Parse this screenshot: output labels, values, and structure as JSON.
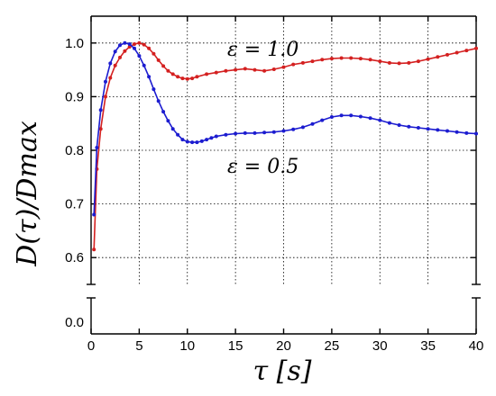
{
  "chart_data": {
    "type": "line",
    "xlabel": "τ [s]",
    "ylabel": "D(τ)/Dmax",
    "xlim": [
      0,
      40
    ],
    "ylim_upper": [
      0.55,
      1.05
    ],
    "ylim_lower": [
      0,
      0.05
    ],
    "broken_y_axis": true,
    "grid": true,
    "x_ticks": [
      "0",
      "5",
      "10",
      "15",
      "20",
      "25",
      "30",
      "35",
      "40"
    ],
    "y_ticks_upper": [
      "0.6",
      "0.7",
      "0.8",
      "0.9",
      "1.0"
    ],
    "y_ticks_lower": [
      "0.0"
    ],
    "series": [
      {
        "name": "ε = 1.0",
        "color": "#d42020",
        "x": [
          0.3,
          0.6,
          1.0,
          1.5,
          2.0,
          2.5,
          3.0,
          3.5,
          4.0,
          4.5,
          5.0,
          5.5,
          6.0,
          6.5,
          7.0,
          7.5,
          8.0,
          8.5,
          9.0,
          9.5,
          10.0,
          10.5,
          11.0,
          12.0,
          13.0,
          14.0,
          15.0,
          16.0,
          17.0,
          18.0,
          19.0,
          20.0,
          21.0,
          22.0,
          23.0,
          24.0,
          25.0,
          26.0,
          27.0,
          28.0,
          29.0,
          30.0,
          31.0,
          32.0,
          33.0,
          34.0,
          35.0,
          36.0,
          37.0,
          38.0,
          39.0,
          40.0
        ],
        "y": [
          0.615,
          0.765,
          0.84,
          0.9,
          0.935,
          0.958,
          0.973,
          0.985,
          0.993,
          0.998,
          1.0,
          0.997,
          0.99,
          0.98,
          0.968,
          0.957,
          0.948,
          0.942,
          0.937,
          0.934,
          0.933,
          0.934,
          0.937,
          0.942,
          0.945,
          0.948,
          0.95,
          0.952,
          0.95,
          0.948,
          0.951,
          0.955,
          0.96,
          0.963,
          0.966,
          0.969,
          0.971,
          0.972,
          0.972,
          0.971,
          0.969,
          0.966,
          0.963,
          0.962,
          0.963,
          0.966,
          0.97,
          0.974,
          0.978,
          0.982,
          0.986,
          0.99
        ]
      },
      {
        "name": "ε = 0.5",
        "color": "#1c1cd0",
        "x": [
          0.3,
          0.6,
          1.0,
          1.5,
          2.0,
          2.5,
          3.0,
          3.5,
          4.0,
          4.5,
          5.0,
          5.5,
          6.0,
          6.5,
          7.0,
          7.5,
          8.0,
          8.5,
          9.0,
          9.5,
          10.0,
          10.5,
          11.0,
          11.5,
          12.0,
          12.5,
          13.0,
          14.0,
          15.0,
          16.0,
          17.0,
          18.0,
          19.0,
          20.0,
          21.0,
          22.0,
          23.0,
          24.0,
          25.0,
          26.0,
          27.0,
          28.0,
          29.0,
          30.0,
          31.0,
          32.0,
          33.0,
          34.0,
          35.0,
          36.0,
          37.0,
          38.0,
          39.0,
          40.0
        ],
        "y": [
          0.68,
          0.805,
          0.875,
          0.928,
          0.962,
          0.984,
          0.996,
          1.0,
          0.998,
          0.99,
          0.976,
          0.958,
          0.937,
          0.914,
          0.892,
          0.872,
          0.855,
          0.84,
          0.829,
          0.82,
          0.816,
          0.815,
          0.815,
          0.817,
          0.82,
          0.823,
          0.826,
          0.829,
          0.831,
          0.832,
          0.832,
          0.833,
          0.834,
          0.836,
          0.839,
          0.843,
          0.849,
          0.856,
          0.862,
          0.865,
          0.865,
          0.863,
          0.86,
          0.856,
          0.851,
          0.847,
          0.844,
          0.842,
          0.84,
          0.838,
          0.836,
          0.834,
          0.832,
          0.831
        ]
      }
    ]
  }
}
